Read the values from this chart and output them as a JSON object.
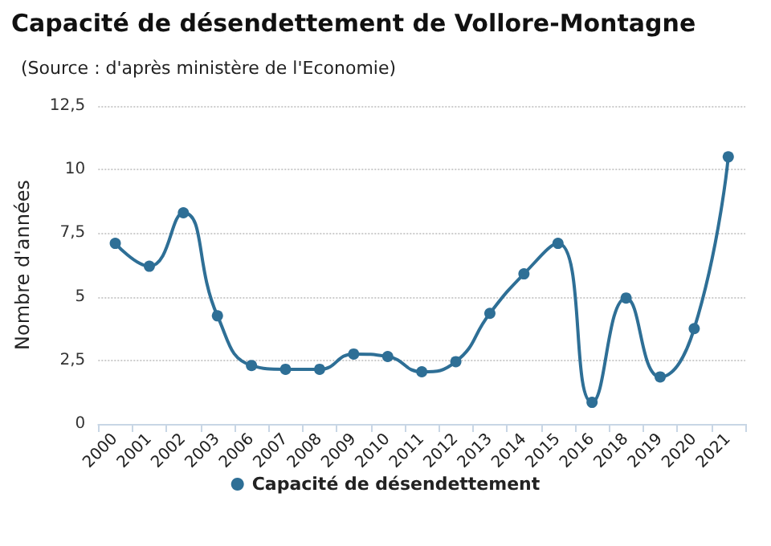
{
  "chart_data": {
    "type": "line",
    "title": "Capacité de désendettement de Vollore-Montagne",
    "subtitle": "(Source : d'après ministère de l'Economie)",
    "ylabel": "Nombre d'années",
    "categories": [
      "2000",
      "2001",
      "2002",
      "2003",
      "2006",
      "2007",
      "2008",
      "2009",
      "2010",
      "2011",
      "2012",
      "2013",
      "2014",
      "2015",
      "2016",
      "2018",
      "2019",
      "2020",
      "2021"
    ],
    "series": [
      {
        "name": "Capacité de désendettement",
        "color": "#2e6f96",
        "values": [
          7.1,
          6.2,
          8.3,
          4.25,
          2.3,
          2.15,
          2.15,
          2.75,
          2.65,
          2.05,
          2.45,
          4.35,
          5.9,
          7.1,
          0.85,
          4.95,
          1.85,
          3.75,
          10.5
        ]
      }
    ],
    "ylim": [
      0,
      12.5
    ],
    "yticks": [
      {
        "value": 0,
        "label": "0"
      },
      {
        "value": 2.5,
        "label": "2,5"
      },
      {
        "value": 5,
        "label": "5"
      },
      {
        "value": 7.5,
        "label": "7,5"
      },
      {
        "value": 10,
        "label": "10"
      },
      {
        "value": 12.5,
        "label": "12,5"
      }
    ],
    "grid": "y",
    "legend": "bottom",
    "marker": "circle",
    "line_style": "solid"
  }
}
